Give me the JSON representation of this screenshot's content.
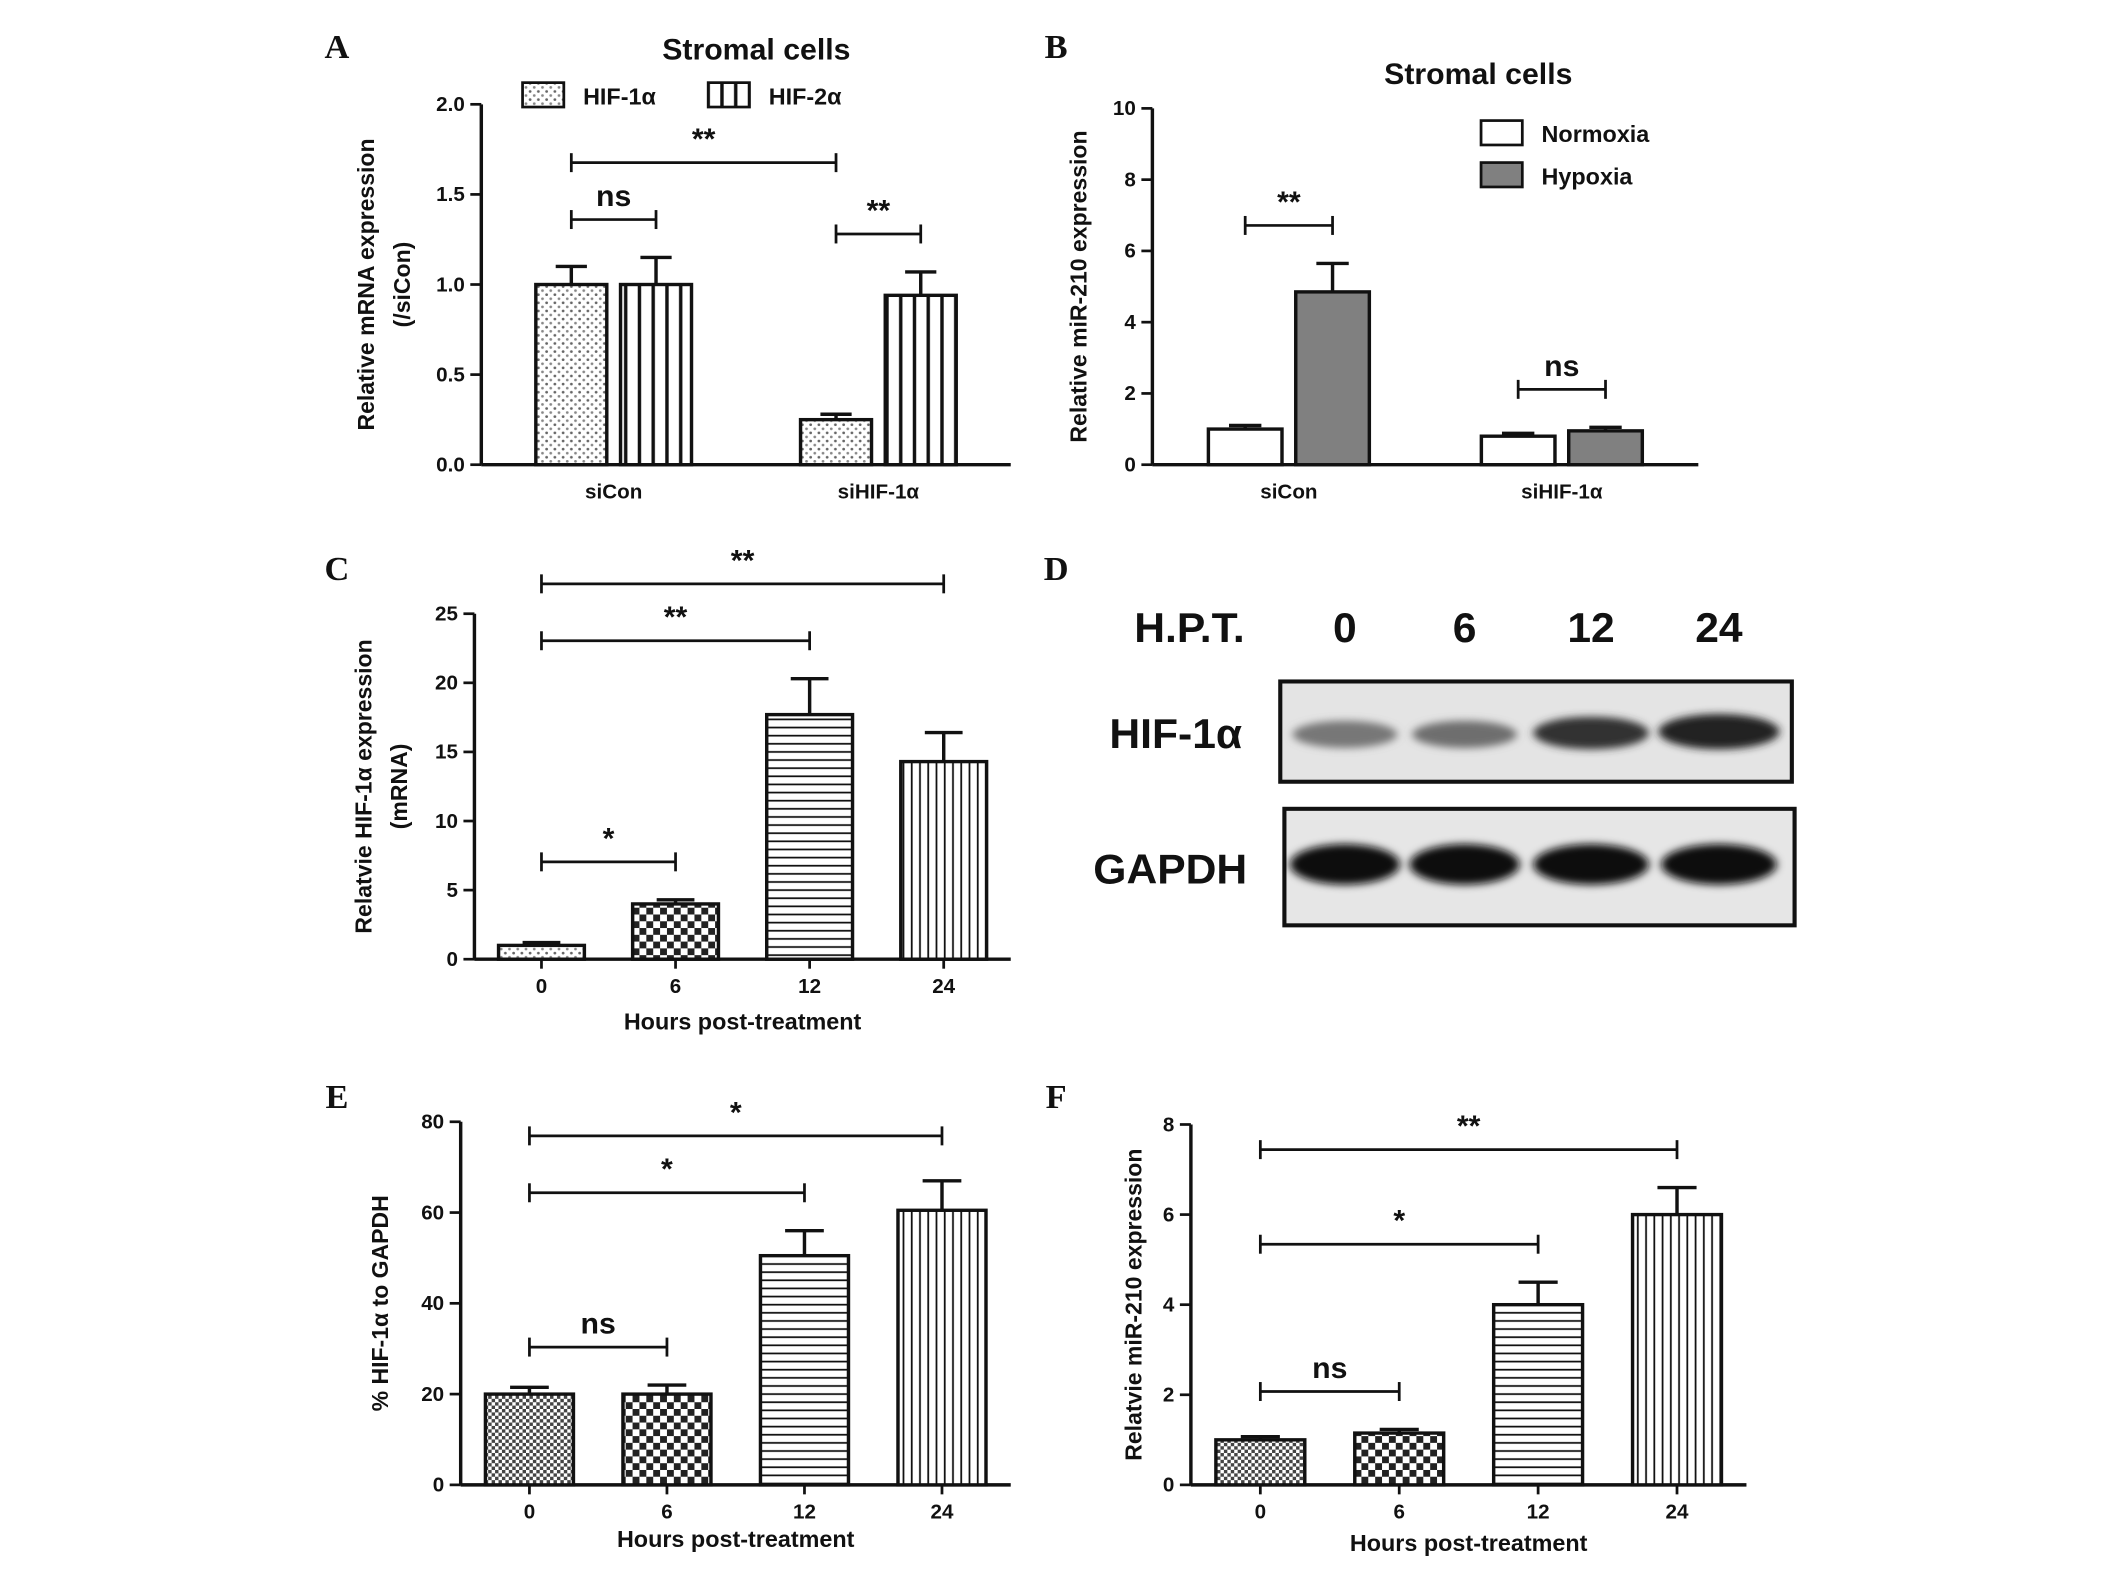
{
  "chart_data": [
    {
      "type": "bar",
      "panel": "A",
      "title": "Stromal cells",
      "ylabel": [
        "Relative mRNA expression",
        "(/siCon)"
      ],
      "categories": [
        "siCon",
        "siHIF-1α"
      ],
      "series": [
        {
          "name": "HIF-1α",
          "pattern": "dots",
          "values": [
            1.0,
            0.25
          ],
          "errors": [
            0.1,
            0.03
          ]
        },
        {
          "name": "HIF-2α",
          "pattern": "vlines-wide",
          "values": [
            1.0,
            0.94
          ],
          "errors": [
            0.15,
            0.13
          ]
        }
      ],
      "ylim": [
        0,
        2
      ],
      "yticks": [
        {
          "value": 0,
          "label": "0.0"
        },
        {
          "value": 0.5,
          "label": "0.5"
        },
        {
          "value": 1,
          "label": "1.0"
        },
        {
          "value": 1.5,
          "label": "1.5"
        },
        {
          "value": 2,
          "label": "2.0"
        }
      ],
      "legend": "top",
      "annotations": [
        {
          "text": "ns",
          "from": [
            0,
            0
          ],
          "to": [
            0,
            1
          ]
        },
        {
          "text": "**",
          "from": [
            1,
            0
          ],
          "to": [
            1,
            1
          ]
        },
        {
          "text": "**",
          "from": [
            0,
            0
          ],
          "to": [
            1,
            0
          ]
        }
      ]
    },
    {
      "type": "bar",
      "panel": "B",
      "title": "Stromal cells",
      "ylabel": "Relative miR-210 expression",
      "categories": [
        "siCon",
        "siHIF-1α"
      ],
      "series": [
        {
          "name": "Normoxia",
          "color": "#ffffff",
          "values": [
            1.0,
            0.8
          ],
          "errors": [
            0.1,
            0.08
          ]
        },
        {
          "name": "Hypoxia",
          "color": "#808080",
          "values": [
            4.85,
            0.95
          ],
          "errors": [
            0.8,
            0.1
          ]
        }
      ],
      "ylim": [
        0,
        10
      ],
      "yticks": [
        0,
        2,
        4,
        6,
        8,
        10
      ],
      "legend": "upper right",
      "annotations": [
        {
          "text": "**",
          "from": [
            0,
            0
          ],
          "to": [
            0,
            1
          ]
        },
        {
          "text": "ns",
          "from": [
            1,
            0
          ],
          "to": [
            1,
            1
          ]
        }
      ]
    },
    {
      "type": "bar",
      "panel": "C",
      "ylabel": [
        "Relatvie HIF-1α expression",
        "(mRNA)"
      ],
      "xlabel": "Hours post-treatment",
      "categories": [
        "0",
        "6",
        "12",
        "24"
      ],
      "series": [
        {
          "patterns": [
            "dots",
            "checker",
            "hlines",
            "vlines"
          ],
          "values": [
            1.0,
            4.0,
            17.7,
            14.3
          ],
          "errors": [
            0.2,
            0.3,
            2.6,
            2.1
          ]
        }
      ],
      "ylim": [
        0,
        25
      ],
      "yticks": [
        0,
        5,
        10,
        15,
        20,
        25
      ],
      "annotations": [
        {
          "text": "*",
          "from": [
            0,
            0
          ],
          "to": [
            1,
            0
          ]
        },
        {
          "text": "**",
          "from": [
            0,
            0
          ],
          "to": [
            2,
            0
          ]
        },
        {
          "text": "**",
          "from": [
            0,
            0
          ],
          "to": [
            3,
            0
          ]
        }
      ]
    },
    {
      "type": "blot",
      "panel": "D",
      "header": "H.P.T.",
      "lanes": [
        "0",
        "6",
        "12",
        "24"
      ],
      "rows": [
        "HIF-1α",
        "GAPDH"
      ]
    },
    {
      "type": "bar",
      "panel": "E",
      "ylabel": "% HIF-1α to GAPDH",
      "xlabel": "Hours post-treatment",
      "categories": [
        "0",
        "6",
        "12",
        "24"
      ],
      "series": [
        {
          "patterns": [
            "checker-fine",
            "checker",
            "hlines",
            "vlines"
          ],
          "values": [
            20,
            20,
            50.5,
            60.5
          ],
          "errors": [
            1.5,
            2,
            5.5,
            6.5
          ]
        }
      ],
      "ylim": [
        0,
        80
      ],
      "yticks": [
        0,
        20,
        40,
        60,
        80
      ],
      "annotations": [
        {
          "text": "ns",
          "from": [
            0,
            0
          ],
          "to": [
            1,
            0
          ]
        },
        {
          "text": "*",
          "from": [
            0,
            0
          ],
          "to": [
            2,
            0
          ]
        },
        {
          "text": "*",
          "from": [
            0,
            0
          ],
          "to": [
            3,
            0
          ]
        }
      ]
    },
    {
      "type": "bar",
      "panel": "F",
      "ylabel": "Relatvie miR-210 expression",
      "xlabel": "Hours post-treatment",
      "categories": [
        "0",
        "6",
        "12",
        "24"
      ],
      "series": [
        {
          "patterns": [
            "checker-fine",
            "checker",
            "hlines",
            "vlines"
          ],
          "values": [
            1.0,
            1.15,
            4.0,
            6.0
          ],
          "errors": [
            0.07,
            0.08,
            0.5,
            0.6
          ]
        }
      ],
      "ylim": [
        0,
        8
      ],
      "yticks": [
        0,
        2,
        4,
        6,
        8
      ],
      "annotations": [
        {
          "text": "ns",
          "from": [
            0,
            0
          ],
          "to": [
            1,
            0
          ]
        },
        {
          "text": "*",
          "from": [
            0,
            0
          ],
          "to": [
            2,
            0
          ]
        },
        {
          "text": "**",
          "from": [
            0,
            0
          ],
          "to": [
            3,
            0
          ]
        }
      ]
    }
  ]
}
